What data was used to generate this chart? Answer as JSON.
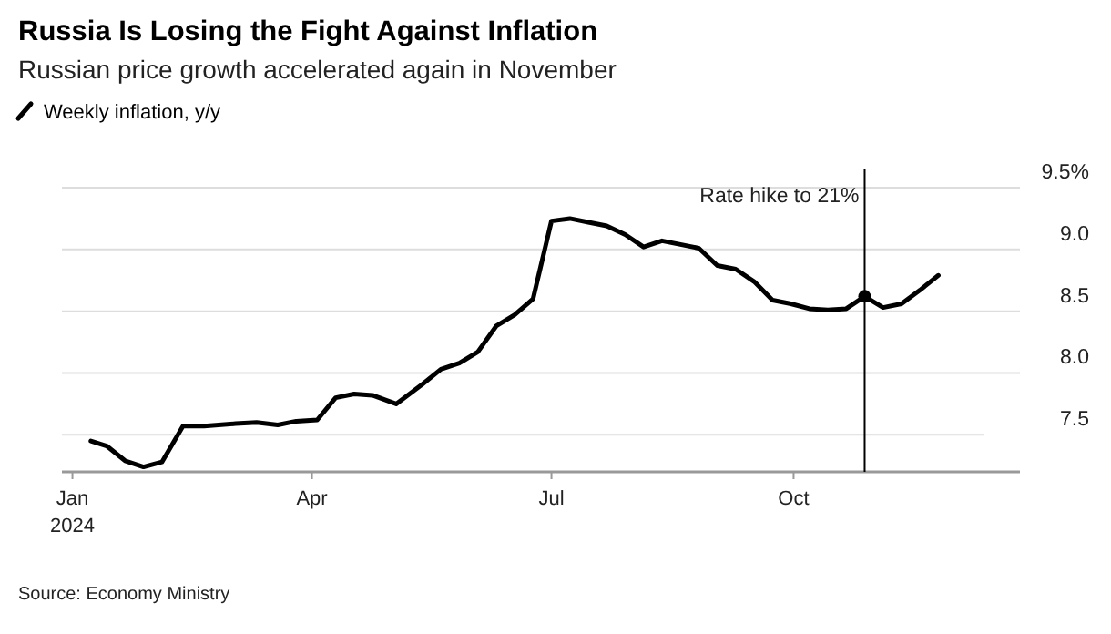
{
  "chart_data": {
    "type": "line",
    "title": "Russia Is Losing the Fight Against Inflation",
    "subtitle": "Russian price growth accelerated again in November",
    "x": [
      "2024-01-08",
      "2024-01-14",
      "2024-01-21",
      "2024-01-28",
      "2024-02-04",
      "2024-02-12",
      "2024-02-20",
      "2024-03-03",
      "2024-03-11",
      "2024-03-19",
      "2024-03-26",
      "2024-04-03",
      "2024-04-10",
      "2024-04-17",
      "2024-04-24",
      "2024-05-03",
      "2024-05-13",
      "2024-05-20",
      "2024-05-27",
      "2024-06-03",
      "2024-06-10",
      "2024-06-17",
      "2024-06-24",
      "2024-07-01",
      "2024-07-08",
      "2024-07-15",
      "2024-07-22",
      "2024-07-29",
      "2024-08-05",
      "2024-08-12",
      "2024-08-19",
      "2024-08-26",
      "2024-09-02",
      "2024-09-09",
      "2024-09-16",
      "2024-09-23",
      "2024-09-30",
      "2024-10-07",
      "2024-10-14",
      "2024-10-21",
      "2024-10-28",
      "2024-11-04",
      "2024-11-11",
      "2024-11-18",
      "2024-11-25"
    ],
    "series": [
      {
        "name": "Weekly inflation, y/y",
        "color": "#000000",
        "values": [
          7.45,
          7.41,
          7.29,
          7.24,
          7.28,
          7.57,
          7.57,
          7.59,
          7.6,
          7.58,
          7.61,
          7.62,
          7.8,
          7.83,
          7.82,
          7.75,
          7.91,
          8.03,
          8.08,
          8.17,
          8.38,
          8.47,
          8.6,
          9.23,
          9.25,
          9.22,
          9.19,
          9.12,
          9.02,
          9.07,
          9.04,
          9.01,
          8.87,
          8.84,
          8.74,
          8.59,
          8.56,
          8.52,
          8.51,
          8.52,
          8.62,
          8.53,
          8.56,
          8.67,
          8.79
        ]
      },
      {
        "type": "scatter",
        "color": "#000000",
        "x": [
          "2024-10-28"
        ],
        "values": [
          8.62
        ]
      }
    ],
    "xlim": [
      "2023-12-28",
      "2024-12-26"
    ],
    "xticks": [
      {
        "value": "2024-01-01",
        "label": "Jan\n2024"
      },
      {
        "value": "2024-04-01",
        "label": "Apr"
      },
      {
        "value": "2024-07-01",
        "label": "Jul"
      },
      {
        "value": "2024-10-01",
        "label": "Oct"
      }
    ],
    "ylim": [
      7.2,
      9.5
    ],
    "yticks": [
      7.5,
      {
        "value": 8,
        "label": "8.0"
      },
      8.5,
      {
        "value": 9,
        "label": "9.0"
      },
      {
        "value": 9.5,
        "label": "9.5%"
      }
    ],
    "grid": "y",
    "legend": "top left",
    "ref_lines": [
      {
        "axis": "x",
        "value": "2024-10-28",
        "label": "Rate hike to 21%",
        "color": "#000000"
      }
    ],
    "annotations": [
      "Source: Economy Ministry"
    ]
  }
}
